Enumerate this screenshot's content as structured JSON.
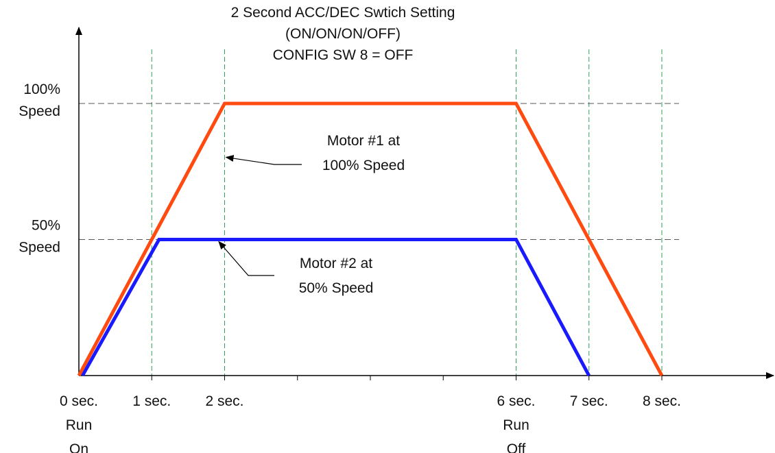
{
  "chart_data": {
    "type": "line",
    "title": [
      "2 Second ACC/DEC Swtich Setting",
      "(ON/ON/ON/OFF)",
      "CONFIG SW 8 = OFF"
    ],
    "xlabel": "",
    "ylabel": "",
    "xlim": [
      0,
      9
    ],
    "ylim": [
      0,
      100
    ],
    "x_ticks": [
      {
        "value": 0,
        "lines": [
          "0 sec.",
          "Run",
          "On"
        ]
      },
      {
        "value": 1,
        "lines": [
          "1 sec."
        ]
      },
      {
        "value": 2,
        "lines": [
          "2 sec."
        ]
      },
      {
        "value": 3,
        "lines": []
      },
      {
        "value": 4,
        "lines": []
      },
      {
        "value": 5,
        "lines": []
      },
      {
        "value": 6,
        "lines": [
          "6 sec.",
          "Run",
          "Off"
        ]
      },
      {
        "value": 7,
        "lines": [
          "7 sec."
        ]
      },
      {
        "value": 8,
        "lines": [
          "8 sec."
        ]
      }
    ],
    "y_ticks": [
      {
        "value": 100,
        "lines": [
          "100%",
          "Speed"
        ]
      },
      {
        "value": 50,
        "lines": [
          "50%",
          "Speed"
        ]
      }
    ],
    "v_gridlines_x": [
      1,
      2,
      6,
      7,
      8
    ],
    "series": [
      {
        "color": "#ff4a10",
        "x": [
          0,
          2,
          6,
          8
        ],
        "y": [
          0,
          100,
          100,
          0
        ]
      },
      {
        "color": "#1a1aff",
        "x": [
          0.05,
          1.1,
          6,
          7
        ],
        "y": [
          0,
          50,
          50,
          0
        ]
      }
    ],
    "annotations": [
      {
        "lines": [
          "Motor #1 at",
          "100% Speed"
        ],
        "target": {
          "x": 1.85,
          "y": 81
        }
      },
      {
        "lines": [
          "Motor #2 at",
          "50% Speed"
        ],
        "target": {
          "x": 1.75,
          "y": 50
        }
      }
    ],
    "grid": "dashed at labeled ticks",
    "legend": "none"
  }
}
